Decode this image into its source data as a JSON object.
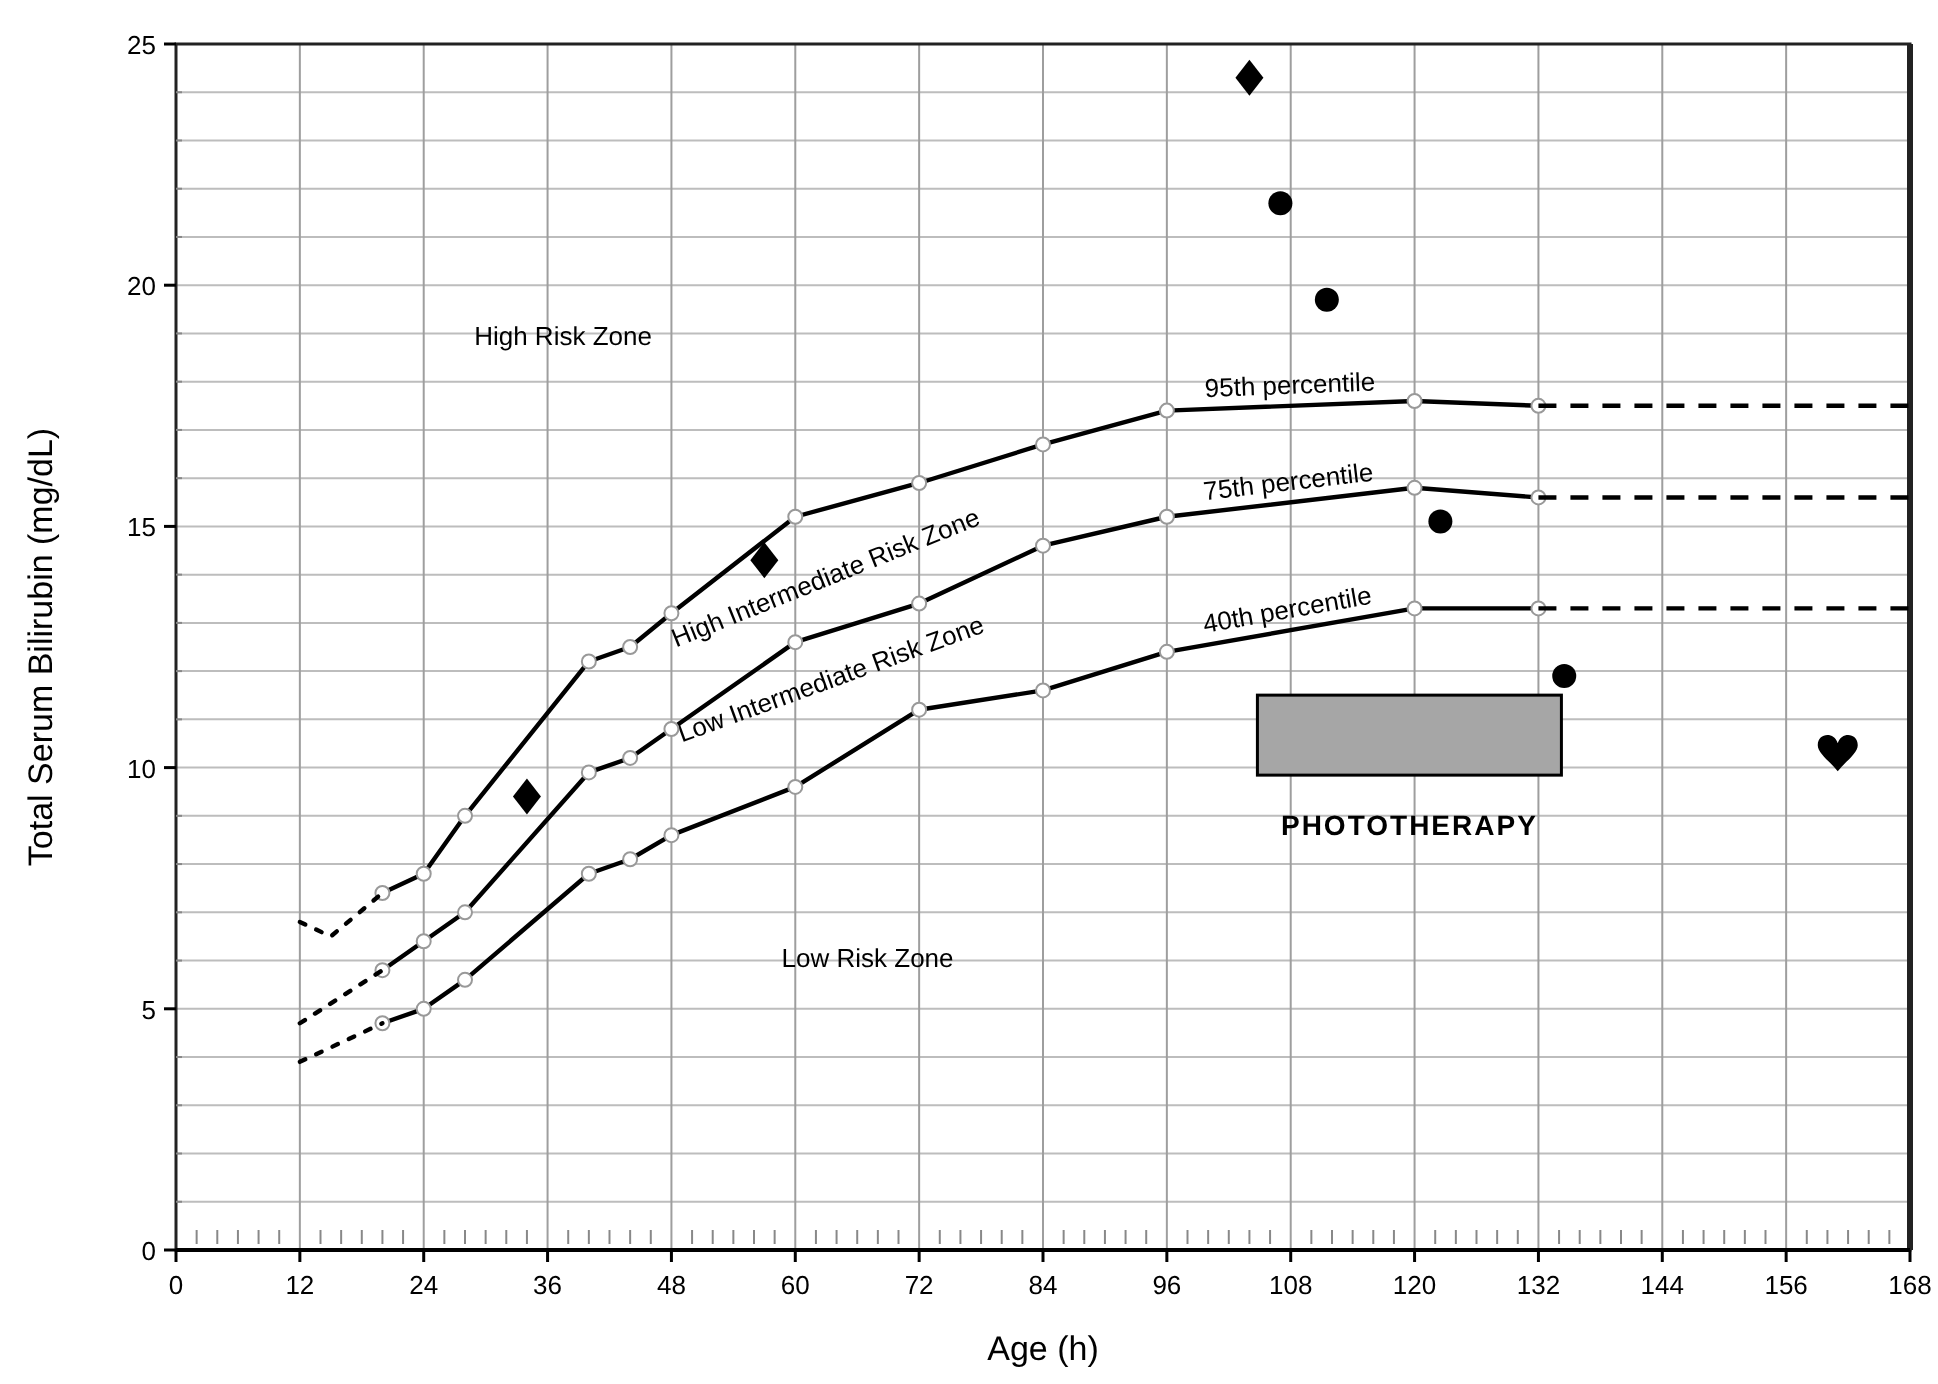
{
  "chart_data": {
    "type": "line",
    "xlabel": "Age (h)",
    "ylabel": "Total Serum Bilirubin (mg/dL)",
    "xlim": [
      0,
      168
    ],
    "ylim": [
      0,
      25
    ],
    "xticks": [
      0,
      {
        "value": 2,
        "label": null
      },
      {
        "value": 4,
        "label": null
      },
      {
        "value": 6,
        "label": null
      },
      {
        "value": 8,
        "label": null
      },
      {
        "value": 10,
        "label": null
      },
      12,
      {
        "value": 14,
        "label": null
      },
      {
        "value": 16,
        "label": null
      },
      {
        "value": 18,
        "label": null
      },
      {
        "value": 20,
        "label": null
      },
      {
        "value": 22,
        "label": null
      },
      24,
      {
        "value": 26,
        "label": null
      },
      {
        "value": 28,
        "label": null
      },
      {
        "value": 30,
        "label": null
      },
      {
        "value": 32,
        "label": null
      },
      {
        "value": 34,
        "label": null
      },
      36,
      {
        "value": 38,
        "label": null
      },
      {
        "value": 40,
        "label": null
      },
      {
        "value": 42,
        "label": null
      },
      {
        "value": 44,
        "label": null
      },
      {
        "value": 46,
        "label": null
      },
      48,
      {
        "value": 50,
        "label": null
      },
      {
        "value": 52,
        "label": null
      },
      {
        "value": 54,
        "label": null
      },
      {
        "value": 56,
        "label": null
      },
      {
        "value": 58,
        "label": null
      },
      60,
      {
        "value": 62,
        "label": null
      },
      {
        "value": 64,
        "label": null
      },
      {
        "value": 66,
        "label": null
      },
      {
        "value": 68,
        "label": null
      },
      {
        "value": 70,
        "label": null
      },
      72,
      {
        "value": 74,
        "label": null
      },
      {
        "value": 76,
        "label": null
      },
      {
        "value": 78,
        "label": null
      },
      {
        "value": 80,
        "label": null
      },
      {
        "value": 82,
        "label": null
      },
      84,
      {
        "value": 86,
        "label": null
      },
      {
        "value": 88,
        "label": null
      },
      {
        "value": 90,
        "label": null
      },
      {
        "value": 92,
        "label": null
      },
      {
        "value": 94,
        "label": null
      },
      96,
      {
        "value": 98,
        "label": null
      },
      {
        "value": 100,
        "label": null
      },
      {
        "value": 102,
        "label": null
      },
      {
        "value": 104,
        "label": null
      },
      {
        "value": 106,
        "label": null
      },
      108,
      {
        "value": 110,
        "label": null
      },
      {
        "value": 112,
        "label": null
      },
      {
        "value": 114,
        "label": null
      },
      {
        "value": 116,
        "label": null
      },
      {
        "value": 118,
        "label": null
      },
      120,
      {
        "value": 122,
        "label": null
      },
      {
        "value": 124,
        "label": null
      },
      {
        "value": 126,
        "label": null
      },
      {
        "value": 128,
        "label": null
      },
      {
        "value": 130,
        "label": null
      },
      132,
      {
        "value": 134,
        "label": null
      },
      {
        "value": 136,
        "label": null
      },
      {
        "value": 138,
        "label": null
      },
      {
        "value": 140,
        "label": null
      },
      {
        "value": 142,
        "label": null
      },
      144,
      {
        "value": 146,
        "label": null
      },
      {
        "value": 148,
        "label": null
      },
      {
        "value": 150,
        "label": null
      },
      {
        "value": 152,
        "label": null
      },
      {
        "value": 154,
        "label": null
      },
      156,
      {
        "value": 158,
        "label": null
      },
      {
        "value": 160,
        "label": null
      },
      {
        "value": 162,
        "label": null
      },
      {
        "value": 164,
        "label": null
      },
      {
        "value": 166,
        "label": null
      },
      168
    ],
    "yticks": [
      0,
      {
        "value": 1,
        "label": null
      },
      {
        "value": 2,
        "label": null
      },
      {
        "value": 3,
        "label": null
      },
      {
        "value": 4,
        "label": null
      },
      5,
      {
        "value": 6,
        "label": null
      },
      {
        "value": 7,
        "label": null
      },
      {
        "value": 8,
        "label": null
      },
      {
        "value": 9,
        "label": null
      },
      10,
      {
        "value": 11,
        "label": null
      },
      {
        "value": 12,
        "label": null
      },
      {
        "value": 13,
        "label": null
      },
      {
        "value": 14,
        "label": null
      },
      15,
      {
        "value": 16,
        "label": null
      },
      {
        "value": 17,
        "label": null
      },
      {
        "value": 18,
        "label": null
      },
      {
        "value": 19,
        "label": null
      },
      20,
      {
        "value": 21,
        "label": null
      },
      {
        "value": 22,
        "label": null
      },
      {
        "value": 23,
        "label": null
      },
      {
        "value": 24,
        "label": null
      },
      25
    ],
    "grid": true,
    "legend": false,
    "series": [
      {
        "name": "95th percentile",
        "color": "#000000",
        "line_style": "solid",
        "marker": "circle",
        "x": [
          20,
          24,
          28,
          40,
          44,
          48,
          60,
          72,
          84,
          96,
          120,
          132
        ],
        "values": [
          7.4,
          7.8,
          9.0,
          12.2,
          12.5,
          13.2,
          15.2,
          15.9,
          16.7,
          17.4,
          17.6,
          17.5
        ]
      },
      {
        "color": "#000000",
        "line_style": "dotted",
        "marker": "none",
        "x": [
          12,
          15,
          20
        ],
        "values": [
          6.8,
          6.5,
          7.4
        ]
      },
      {
        "color": "#000000",
        "line_style": "dashed",
        "marker": "none",
        "x": [
          132,
          168
        ],
        "values": [
          17.5,
          17.5
        ]
      },
      {
        "name": "75th percentile",
        "color": "#000000",
        "line_style": "solid",
        "marker": "circle",
        "x": [
          20,
          24,
          28,
          40,
          44,
          48,
          60,
          72,
          84,
          96,
          120,
          132
        ],
        "values": [
          5.8,
          6.4,
          7.0,
          9.9,
          10.2,
          10.8,
          12.6,
          13.4,
          14.6,
          15.2,
          15.8,
          15.6
        ]
      },
      {
        "color": "#000000",
        "line_style": "dotted",
        "marker": "none",
        "x": [
          12,
          20
        ],
        "values": [
          4.7,
          5.8
        ]
      },
      {
        "color": "#000000",
        "line_style": "dashed",
        "marker": "none",
        "x": [
          132,
          168
        ],
        "values": [
          15.6,
          15.6
        ]
      },
      {
        "name": "40th percentile",
        "color": "#000000",
        "line_style": "solid",
        "marker": "circle",
        "x": [
          20,
          24,
          28,
          40,
          44,
          48,
          60,
          72,
          84,
          96,
          120,
          132
        ],
        "values": [
          4.7,
          5.0,
          5.6,
          7.8,
          8.1,
          8.6,
          9.6,
          11.2,
          11.6,
          12.4,
          13.3,
          13.3
        ]
      },
      {
        "color": "#000000",
        "line_style": "dotted",
        "marker": "none",
        "x": [
          12,
          20
        ],
        "values": [
          3.9,
          4.7
        ]
      },
      {
        "color": "#000000",
        "line_style": "dashed",
        "marker": "none",
        "x": [
          132,
          168
        ],
        "values": [
          13.3,
          13.3
        ]
      },
      {
        "type": "scatter",
        "color": "#000000",
        "marker": "diamond",
        "x": [
          34,
          57,
          104
        ],
        "values": [
          9.4,
          14.3,
          24.3
        ]
      },
      {
        "type": "scatter",
        "color": "#000000",
        "marker": "circle",
        "x": [
          107,
          111.5,
          122.5,
          134.5
        ],
        "values": [
          21.7,
          19.7,
          15.1,
          11.9
        ]
      },
      {
        "type": "scatter",
        "color": "#000000",
        "x": [
          161
        ],
        "values": [
          10.3
        ]
      }
    ],
    "annotations": [
      "High Risk Zone",
      "High Intermediate Risk Zone",
      "Low Intermediate Risk Zone",
      "Low Risk Zone",
      "PHOTOTHERAPY"
    ]
  }
}
